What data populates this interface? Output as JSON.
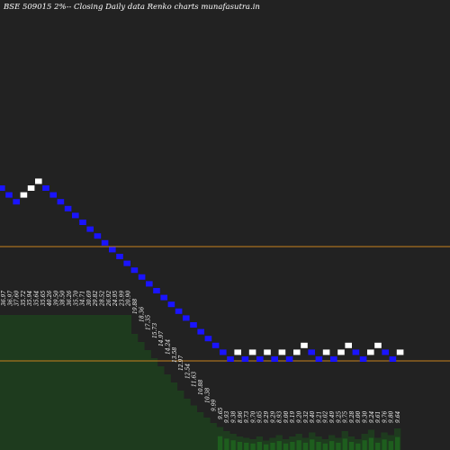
{
  "header": {
    "title": "BSE 509015 2%-- Closing Daily data Renko charts munafasutra.in"
  },
  "colors": {
    "background": "#222222",
    "up_brick": "#ffffff",
    "down_brick": "#1a14ff",
    "volume_area": "#1e3b1e",
    "volume_bars": "#1e5e1e",
    "level_line": "#c8821e"
  },
  "chart_data": {
    "type": "renko",
    "title": "BSE 509015 2%-- Closing Daily data Renko charts munafasutra.in",
    "bricks": [
      {
        "level": 0,
        "dir": "down"
      },
      {
        "level": -1,
        "dir": "down"
      },
      {
        "level": -2,
        "dir": "down"
      },
      {
        "level": -1,
        "dir": "up"
      },
      {
        "level": 0,
        "dir": "up"
      },
      {
        "level": 1,
        "dir": "up"
      },
      {
        "level": 0,
        "dir": "down"
      },
      {
        "level": -1,
        "dir": "down"
      },
      {
        "level": -2,
        "dir": "down"
      },
      {
        "level": -3,
        "dir": "down"
      },
      {
        "level": -4,
        "dir": "down"
      },
      {
        "level": -5,
        "dir": "down"
      },
      {
        "level": -6,
        "dir": "down"
      },
      {
        "level": -7,
        "dir": "down"
      },
      {
        "level": -8,
        "dir": "down"
      },
      {
        "level": -9,
        "dir": "down"
      },
      {
        "level": -10,
        "dir": "down"
      },
      {
        "level": -11,
        "dir": "down"
      },
      {
        "level": -12,
        "dir": "down"
      },
      {
        "level": -13,
        "dir": "down"
      },
      {
        "level": -14,
        "dir": "down"
      },
      {
        "level": -15,
        "dir": "down"
      },
      {
        "level": -16,
        "dir": "down"
      },
      {
        "level": -17,
        "dir": "down"
      },
      {
        "level": -18,
        "dir": "down"
      },
      {
        "level": -19,
        "dir": "down"
      },
      {
        "level": -20,
        "dir": "down"
      },
      {
        "level": -21,
        "dir": "down"
      },
      {
        "level": -22,
        "dir": "down"
      },
      {
        "level": -23,
        "dir": "down"
      },
      {
        "level": -24,
        "dir": "down"
      },
      {
        "level": -25,
        "dir": "down"
      },
      {
        "level": -24,
        "dir": "up"
      },
      {
        "level": -25,
        "dir": "down"
      },
      {
        "level": -24,
        "dir": "up"
      },
      {
        "level": -25,
        "dir": "down"
      },
      {
        "level": -24,
        "dir": "up"
      },
      {
        "level": -25,
        "dir": "down"
      },
      {
        "level": -24,
        "dir": "up"
      },
      {
        "level": -25,
        "dir": "down"
      },
      {
        "level": -24,
        "dir": "up"
      },
      {
        "level": -23,
        "dir": "up"
      },
      {
        "level": -24,
        "dir": "down"
      },
      {
        "level": -25,
        "dir": "down"
      },
      {
        "level": -24,
        "dir": "up"
      },
      {
        "level": -25,
        "dir": "down"
      },
      {
        "level": -24,
        "dir": "up"
      },
      {
        "level": -23,
        "dir": "up"
      },
      {
        "level": -24,
        "dir": "down"
      },
      {
        "level": -25,
        "dir": "down"
      },
      {
        "level": -24,
        "dir": "up"
      },
      {
        "level": -23,
        "dir": "up"
      },
      {
        "level": -24,
        "dir": "down"
      },
      {
        "level": -25,
        "dir": "down"
      },
      {
        "level": -24,
        "dir": "up"
      }
    ],
    "price_labels": [
      "36.97",
      "36.97",
      "37.60",
      "35.72",
      "35.94",
      "35.64",
      "35.65",
      "40.26",
      "39.50",
      "38.50",
      "36.26",
      "35.70",
      "34.71",
      "30.69",
      "29.82",
      "28.52",
      "26.92",
      "24.95",
      "23.99",
      "20.90",
      "19.88",
      "18.36",
      "17.35",
      "15.73",
      "14.97",
      "14.24",
      "13.58",
      "12.97",
      "12.54",
      "11.63",
      "10.88",
      "10.38",
      "9.99",
      "9.65",
      "9.93",
      "9.38",
      "8.96",
      "9.73",
      "9.70",
      "9.05",
      "9.29",
      "9.29",
      "8.93",
      "9.00",
      "9.19",
      "9.20",
      "9.32",
      "9.40",
      "9.21",
      "9.02",
      "9.49",
      "9.25",
      "9.75",
      "9.28",
      "9.00",
      "9.30",
      "9.24",
      "9.61",
      "9.76",
      "9.80",
      "9.64"
    ],
    "level_lines": [
      "upper",
      "lower"
    ],
    "volume": [
      1.0,
      1.0,
      1.0,
      1.0,
      1.0,
      1.0,
      1.0,
      1.0,
      1.0,
      1.0,
      1.0,
      1.0,
      1.0,
      1.0,
      1.0,
      1.0,
      1.0,
      1.0,
      1.0,
      1.0,
      0.86,
      0.8,
      0.74,
      0.68,
      0.62,
      0.56,
      0.5,
      0.44,
      0.38,
      0.33,
      0.28,
      0.24,
      0.2,
      0.17,
      0.14,
      0.12,
      0.1,
      0.09,
      0.08,
      0.1,
      0.07,
      0.09,
      0.11,
      0.08,
      0.1,
      0.12,
      0.09,
      0.13,
      0.1,
      0.08,
      0.11,
      0.09,
      0.14,
      0.1,
      0.08,
      0.12,
      0.15,
      0.09,
      0.13,
      0.11,
      0.16
    ]
  }
}
